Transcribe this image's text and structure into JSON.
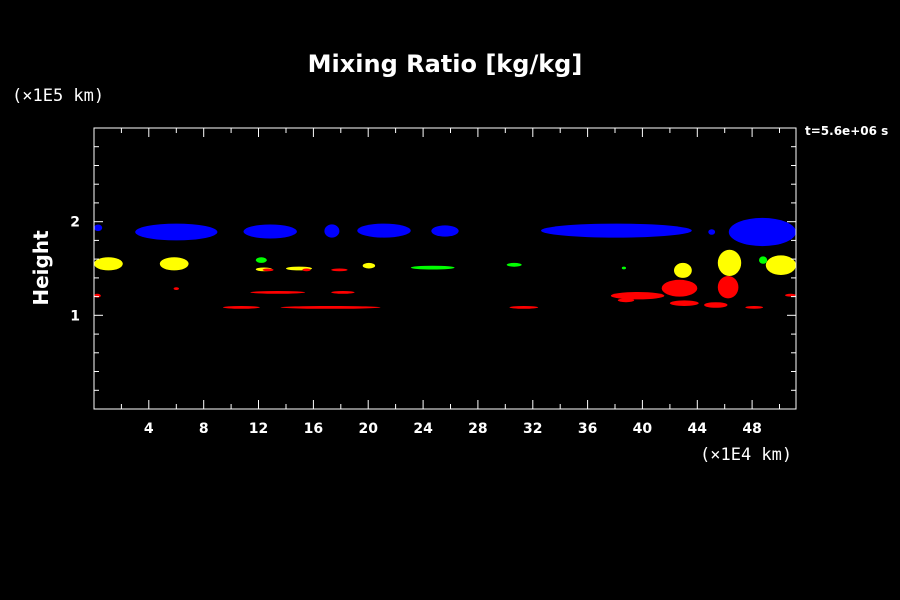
{
  "chart_data": {
    "type": "heatmap",
    "title": "Mixing Ratio [kg/kg]",
    "xlabel": "",
    "ylabel": "Height",
    "x_unit": "(×1E4 km)",
    "y_unit": "(×1E5 km)",
    "time_label": "t=5.6e+06 s",
    "xlim": [
      0,
      51.2
    ],
    "ylim": [
      0,
      3
    ],
    "x_ticks": [
      4,
      8,
      12,
      16,
      20,
      24,
      28,
      32,
      36,
      40,
      44,
      48
    ],
    "y_ticks": [
      1,
      2
    ],
    "colors": {
      "blue": "#0000ff",
      "yellow": "#ffff00",
      "green": "#00ff00",
      "red": "#ff0000"
    },
    "features": [
      {
        "color": "blue",
        "x": 0.0,
        "x2": 0.6,
        "y1": 1.9,
        "y2": 1.97
      },
      {
        "color": "blue",
        "x": 3.0,
        "x2": 9.0,
        "y1": 1.8,
        "y2": 1.98
      },
      {
        "color": "blue",
        "x": 10.9,
        "x2": 14.8,
        "y1": 1.82,
        "y2": 1.97
      },
      {
        "color": "blue",
        "x": 16.8,
        "x2": 17.9,
        "y1": 1.83,
        "y2": 1.97
      },
      {
        "color": "blue",
        "x": 19.2,
        "x2": 23.1,
        "y1": 1.83,
        "y2": 1.98
      },
      {
        "color": "blue",
        "x": 24.6,
        "x2": 26.6,
        "y1": 1.84,
        "y2": 1.96
      },
      {
        "color": "blue",
        "x": 32.6,
        "x2": 43.6,
        "y1": 1.83,
        "y2": 1.98
      },
      {
        "color": "blue",
        "x": 44.8,
        "x2": 45.3,
        "y1": 1.86,
        "y2": 1.92
      },
      {
        "color": "blue",
        "x": 46.3,
        "x2": 51.2,
        "y1": 1.74,
        "y2": 2.04
      },
      {
        "color": "yellow",
        "x": 0.0,
        "x2": 2.1,
        "y1": 1.48,
        "y2": 1.62
      },
      {
        "color": "yellow",
        "x": 4.8,
        "x2": 6.9,
        "y1": 1.48,
        "y2": 1.62
      },
      {
        "color": "yellow",
        "x": 11.8,
        "x2": 13.0,
        "y1": 1.47,
        "y2": 1.51
      },
      {
        "color": "yellow",
        "x": 14.0,
        "x2": 15.9,
        "y1": 1.48,
        "y2": 1.52
      },
      {
        "color": "yellow",
        "x": 19.6,
        "x2": 20.5,
        "y1": 1.5,
        "y2": 1.56
      },
      {
        "color": "yellow",
        "x": 42.3,
        "x2": 43.6,
        "y1": 1.4,
        "y2": 1.56
      },
      {
        "color": "yellow",
        "x": 45.5,
        "x2": 47.2,
        "y1": 1.42,
        "y2": 1.7
      },
      {
        "color": "yellow",
        "x": 49.0,
        "x2": 51.2,
        "y1": 1.43,
        "y2": 1.64
      },
      {
        "color": "green",
        "x": 11.8,
        "x2": 12.6,
        "y1": 1.56,
        "y2": 1.62
      },
      {
        "color": "green",
        "x": 23.1,
        "x2": 26.3,
        "y1": 1.49,
        "y2": 1.53
      },
      {
        "color": "green",
        "x": 30.1,
        "x2": 31.2,
        "y1": 1.52,
        "y2": 1.56
      },
      {
        "color": "green",
        "x": 38.5,
        "x2": 38.8,
        "y1": 1.49,
        "y2": 1.52
      },
      {
        "color": "green",
        "x": 48.5,
        "x2": 49.1,
        "y1": 1.55,
        "y2": 1.63
      },
      {
        "color": "red",
        "x": 0.0,
        "x2": 0.5,
        "y1": 1.19,
        "y2": 1.23
      },
      {
        "color": "red",
        "x": 5.8,
        "x2": 6.2,
        "y1": 1.27,
        "y2": 1.3
      },
      {
        "color": "red",
        "x": 12.3,
        "x2": 13.1,
        "y1": 1.47,
        "y2": 1.5
      },
      {
        "color": "red",
        "x": 15.2,
        "x2": 15.8,
        "y1": 1.47,
        "y2": 1.5
      },
      {
        "color": "red",
        "x": 17.3,
        "x2": 18.5,
        "y1": 1.47,
        "y2": 1.5
      },
      {
        "color": "red",
        "x": 11.4,
        "x2": 15.4,
        "y1": 1.23,
        "y2": 1.26
      },
      {
        "color": "red",
        "x": 17.3,
        "x2": 19.0,
        "y1": 1.23,
        "y2": 1.26
      },
      {
        "color": "red",
        "x": 9.4,
        "x2": 12.1,
        "y1": 1.07,
        "y2": 1.1
      },
      {
        "color": "red",
        "x": 13.6,
        "x2": 20.9,
        "y1": 1.07,
        "y2": 1.1
      },
      {
        "color": "red",
        "x": 30.3,
        "x2": 32.4,
        "y1": 1.07,
        "y2": 1.1
      },
      {
        "color": "red",
        "x": 37.7,
        "x2": 41.6,
        "y1": 1.17,
        "y2": 1.25
      },
      {
        "color": "red",
        "x": 41.4,
        "x2": 44.0,
        "y1": 1.2,
        "y2": 1.38
      },
      {
        "color": "red",
        "x": 38.2,
        "x2": 39.4,
        "y1": 1.14,
        "y2": 1.18
      },
      {
        "color": "red",
        "x": 42.0,
        "x2": 44.1,
        "y1": 1.1,
        "y2": 1.16
      },
      {
        "color": "red",
        "x": 45.5,
        "x2": 47.0,
        "y1": 1.18,
        "y2": 1.42
      },
      {
        "color": "red",
        "x": 44.5,
        "x2": 46.2,
        "y1": 1.08,
        "y2": 1.14
      },
      {
        "color": "red",
        "x": 47.5,
        "x2": 48.8,
        "y1": 1.07,
        "y2": 1.1
      },
      {
        "color": "red",
        "x": 50.4,
        "x2": 51.2,
        "y1": 1.2,
        "y2": 1.23
      }
    ]
  }
}
